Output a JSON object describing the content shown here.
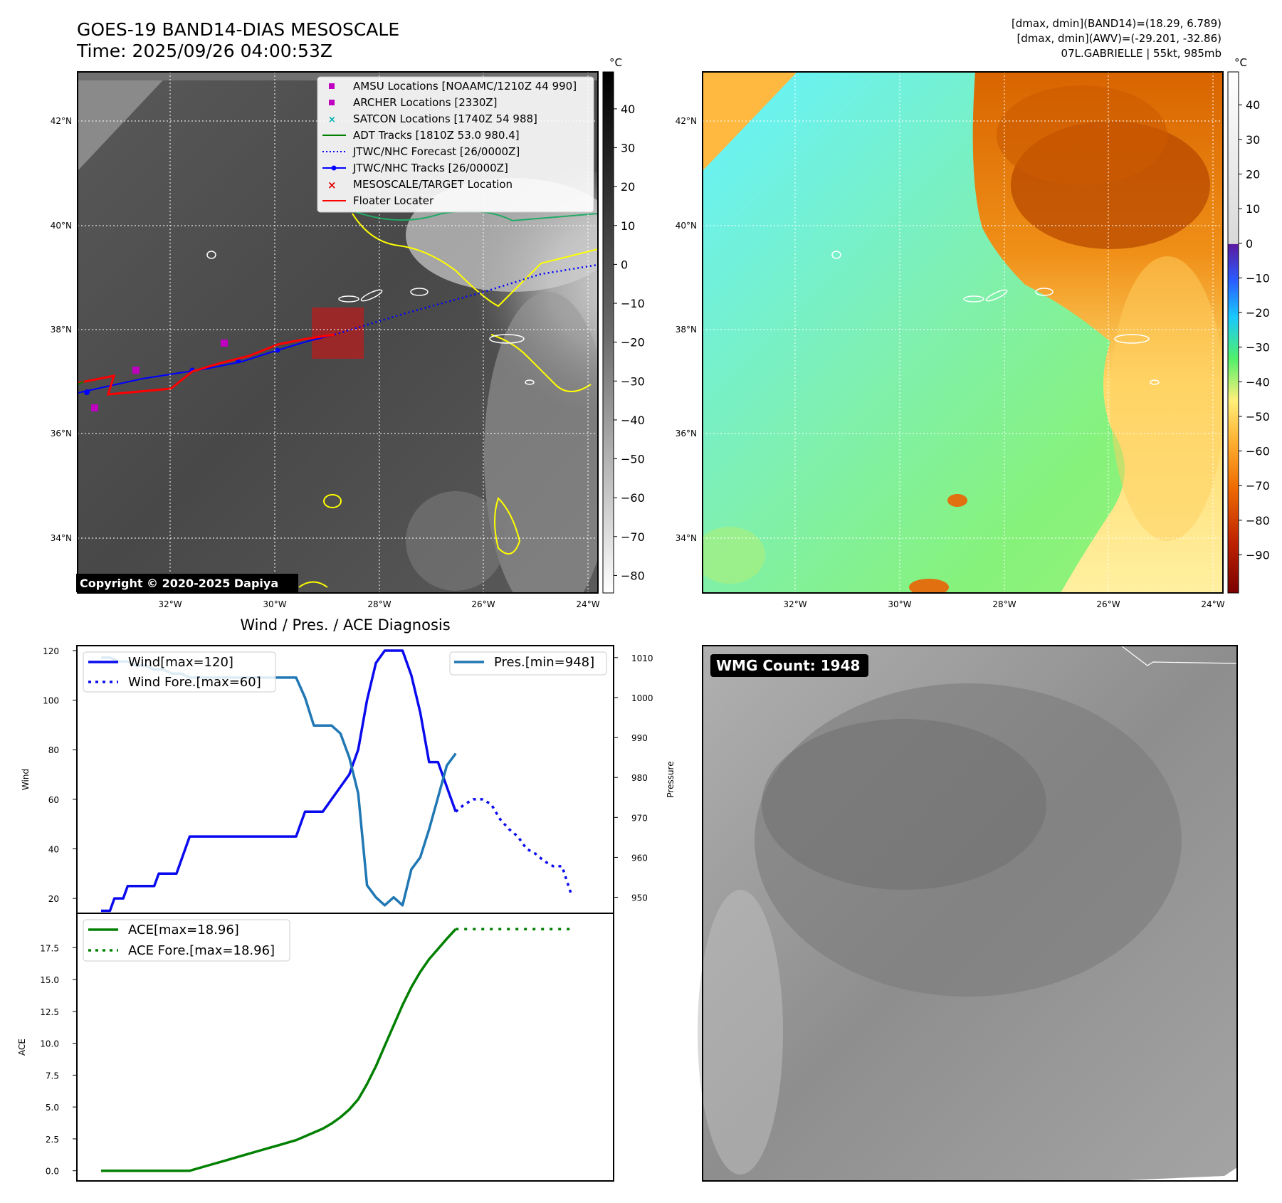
{
  "header": {
    "title_line1": "GOES-19 BAND14-DIAS MESOSCALE",
    "title_line2": "Time: 2025/09/26 04:00:53Z",
    "info_line1": "[dmax, dmin](BAND14)=(18.29, 6.789)",
    "info_line2": "[dmax, dmin](AWV)=(-29.201, -32.86)",
    "info_line3": "07L.GABRIELLE | 55kt, 985mb"
  },
  "map_axes": {
    "lon_labels": [
      "32°W",
      "30°W",
      "28°W",
      "26°W",
      "24°W"
    ],
    "lat_labels": [
      "42°N",
      "40°N",
      "38°N",
      "36°N",
      "34°N"
    ]
  },
  "ir_colorbar": {
    "unit": "°C",
    "ticks": [
      "40",
      "30",
      "20",
      "10",
      "0",
      "−10",
      "−20",
      "−30",
      "−40",
      "−50",
      "−60",
      "−70",
      "−80"
    ]
  },
  "wv_colorbar": {
    "unit": "°C",
    "ticks": [
      "40",
      "30",
      "20",
      "10",
      "0",
      "−10",
      "−20",
      "−30",
      "−40",
      "−50",
      "−60",
      "−70",
      "−80",
      "−90"
    ]
  },
  "legend": {
    "items": [
      {
        "label": "AMSU Locations [NOAAMC/1210Z 44 990]",
        "color": "#c000c0",
        "marker": "square"
      },
      {
        "label": "ARCHER Locations [2330Z]",
        "color": "#c000c0",
        "marker": "square"
      },
      {
        "label": "SATCON Locations [1740Z 54 988]",
        "color": "#00b0b0",
        "marker": "x"
      },
      {
        "label": "ADT Tracks [1810Z 53.0 980.4]",
        "color": "#008000",
        "marker": "line"
      },
      {
        "label": "JTWC/NHC Forecast [26/0000Z]",
        "color": "#0000ff",
        "marker": "dotted"
      },
      {
        "label": "JTWC/NHC Tracks [26/0000Z]",
        "color": "#0000ff",
        "marker": "line-dot"
      },
      {
        "label": "MESOSCALE/TARGET Location",
        "color": "#e00000",
        "marker": "x"
      },
      {
        "label": "Floater Locater",
        "color": "#ff0000",
        "marker": "line"
      }
    ]
  },
  "copyright": "Copyright © 2020-2025 Dapiya",
  "wmg_label": "WMG Count: 1948",
  "chart_data": [
    {
      "type": "line",
      "title": "Wind / Pres. / ACE Diagnosis",
      "ylabel": "Wind",
      "y2label": "Pressure",
      "ylim": [
        14,
        122
      ],
      "y2lim": [
        946,
        1013
      ],
      "yticks": [
        20,
        40,
        60,
        80,
        100,
        120
      ],
      "y2ticks": [
        950,
        960,
        970,
        980,
        990,
        1000,
        1010
      ],
      "xlim": [
        0,
        55
      ],
      "series": [
        {
          "name": "Wind[max=120]",
          "axis": "left",
          "style": "solid",
          "color": "#0a0aee",
          "x": [
            0,
            1,
            1.5,
            2.5,
            3,
            4,
            4.5,
            6,
            6.5,
            8,
            8.5,
            10,
            12,
            14,
            16,
            18,
            20,
            22,
            23,
            23.5,
            24,
            25,
            26,
            27,
            28,
            29,
            30,
            31,
            32,
            33,
            34,
            35,
            36,
            37,
            37.5,
            38,
            39,
            40
          ],
          "values": [
            15,
            15,
            20,
            20,
            25,
            25,
            25,
            25,
            30,
            30,
            30,
            45,
            45,
            45,
            45,
            45,
            45,
            45,
            55,
            55,
            55,
            55,
            60,
            65,
            70,
            80,
            100,
            115,
            120,
            120,
            120,
            110,
            95,
            75,
            75,
            75,
            65,
            55
          ]
        },
        {
          "name": "Wind Fore.[max=60]",
          "axis": "left",
          "style": "dotted",
          "color": "#0a0aee",
          "x": [
            40,
            41,
            42,
            43,
            44,
            45,
            46,
            47,
            48,
            49,
            50,
            51,
            52,
            53
          ],
          "values": [
            55,
            58,
            60,
            60,
            58,
            52,
            48,
            45,
            40,
            38,
            35,
            33,
            33,
            22
          ]
        },
        {
          "name": "Pres.[min=948]",
          "axis": "right",
          "style": "solid",
          "color": "#1f77b4",
          "x": [
            0,
            1,
            2,
            3,
            4,
            5,
            6,
            7,
            8,
            9,
            10,
            11,
            12,
            13,
            14,
            15,
            16,
            17,
            18,
            19,
            20,
            21,
            22,
            23,
            24,
            25,
            26,
            27,
            28,
            29,
            30,
            31,
            32,
            33,
            34,
            35,
            36,
            37,
            38,
            39,
            40
          ],
          "values": [
            1010,
            1010,
            1009,
            1009,
            1008,
            1008,
            1007,
            1007,
            1006,
            1006,
            1005,
            1005,
            1005,
            1005,
            1005,
            1005,
            1005,
            1005,
            1005,
            1005,
            1005,
            1005,
            1005,
            1000,
            993,
            993,
            993,
            991,
            985,
            976,
            953,
            950,
            948,
            950,
            948,
            957,
            960,
            967,
            975,
            983,
            986
          ]
        }
      ]
    },
    {
      "type": "line",
      "ylabel": "ACE",
      "ylim": [
        -0.8,
        20.2
      ],
      "yticks": [
        0.0,
        2.5,
        5.0,
        7.5,
        10.0,
        12.5,
        15.0,
        17.5
      ],
      "ytick_labels": [
        "0.0",
        "2.5",
        "5.0",
        "7.5",
        "10.0",
        "12.5",
        "15.0",
        "17.5"
      ],
      "xlim": [
        0,
        55
      ],
      "series": [
        {
          "name": "ACE[max=18.96]",
          "style": "solid",
          "color": "#008000",
          "x": [
            0,
            2,
            4,
            6,
            8,
            10,
            12,
            14,
            16,
            18,
            20,
            22,
            24,
            25,
            26,
            27,
            28,
            29,
            30,
            31,
            32,
            33,
            34,
            35,
            36,
            37,
            38,
            39,
            40
          ],
          "values": [
            0,
            0,
            0,
            0,
            0,
            0,
            0.4,
            0.8,
            1.2,
            1.6,
            2.0,
            2.4,
            3.0,
            3.3,
            3.7,
            4.2,
            4.8,
            5.6,
            6.8,
            8.2,
            9.8,
            11.4,
            13.0,
            14.4,
            15.6,
            16.6,
            17.4,
            18.2,
            18.96
          ]
        },
        {
          "name": "ACE Fore.[max=18.96]",
          "style": "dotted",
          "color": "#008000",
          "x": [
            40,
            53
          ],
          "values": [
            18.96,
            18.96
          ]
        }
      ]
    }
  ]
}
